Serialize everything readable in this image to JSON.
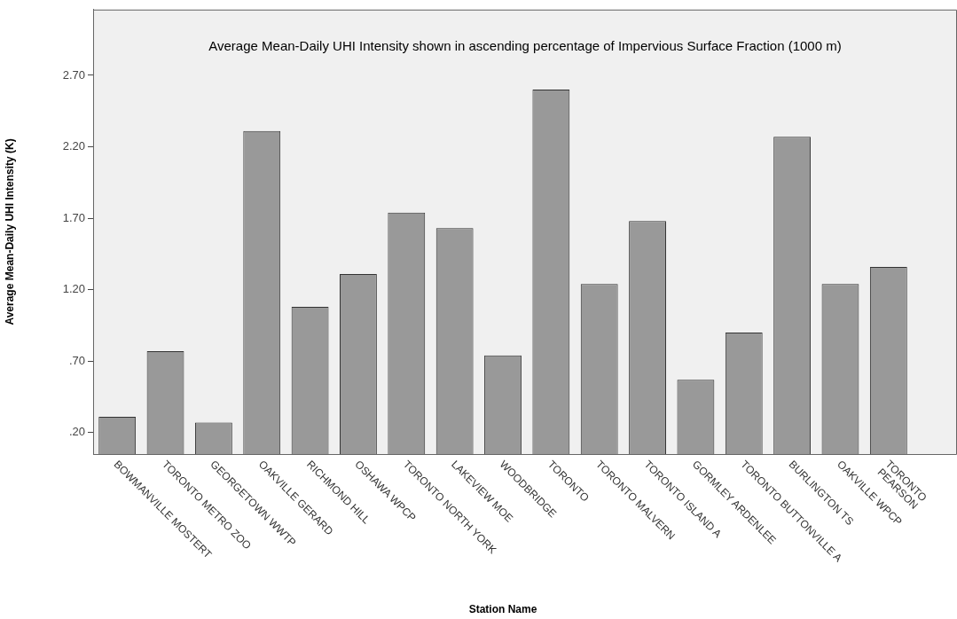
{
  "chart_data": {
    "type": "bar",
    "title": "Average Mean-Daily UHI Intensity shown in ascending percentage of Impervious Surface Fraction (1000 m)",
    "xlabel": "Station Name",
    "ylabel": "Average Mean-Daily UHI Intensity (K)",
    "categories": [
      "BOWMANVILLE MOSTERT",
      "TORONTO METRO ZOO",
      "GEORGETOWN WWTP",
      "OAKVILLE GERARD",
      "RICHMOND HILL",
      "OSHAWA WPCP",
      "TORONTO NORTH YORK",
      "LAKEVIEW MOE",
      "WOODBRIDGE",
      "TORONTO",
      "TORONTO MALVERN",
      "TORONTO ISLAND A",
      "GORMLEY ARDENLEE",
      "TORONTO BUTTONVILLE A",
      "BURLINGTON TS",
      "OAKVILLE WPCP",
      "TORONTO PEARSON"
    ],
    "values": [
      0.31,
      0.77,
      0.27,
      2.31,
      1.08,
      1.31,
      1.74,
      1.63,
      0.74,
      2.6,
      1.24,
      1.68,
      0.57,
      0.9,
      2.27,
      1.24,
      1.36
    ],
    "color": "#999999",
    "ylim": [
      0.05,
      3.16
    ],
    "yticks": [
      {
        "value": 0.2,
        "label": ".20"
      },
      {
        "value": 0.7,
        "label": ".70"
      },
      {
        "value": 1.2,
        "label": "1.20"
      },
      {
        "value": 1.7,
        "label": "1.70"
      },
      {
        "value": 2.2,
        "label": "2.20"
      },
      {
        "value": 2.7,
        "label": "2.70"
      }
    ],
    "grid": false,
    "legend": false
  }
}
